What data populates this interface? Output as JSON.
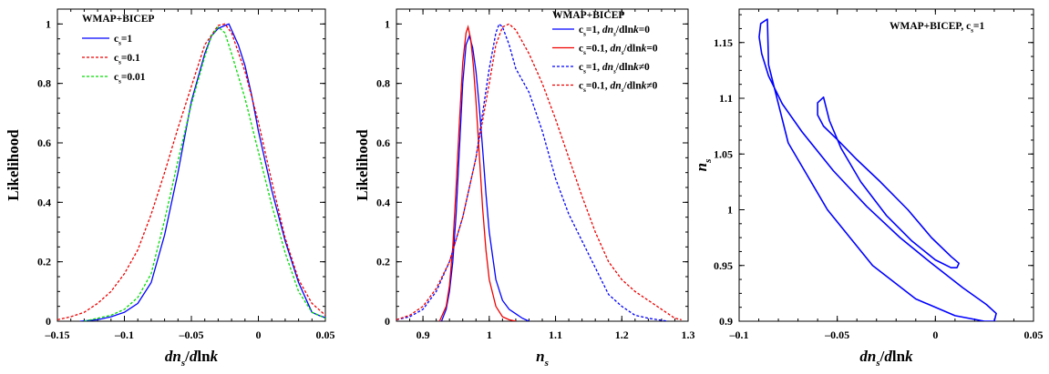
{
  "chart_data": [
    {
      "type": "line",
      "title": "WMAP+BICEP",
      "xlabel": "dn_s/dlnk",
      "xlabel_parts": [
        "dn",
        "s",
        "/",
        "d",
        "ln",
        "k"
      ],
      "ylabel": "Likelihood",
      "xlim": [
        -0.15,
        0.05
      ],
      "ylim": [
        0,
        1.05
      ],
      "xticks": [
        -0.15,
        -0.1,
        -0.05,
        0,
        0.05
      ],
      "xtick_labels": [
        "-0.15",
        "-0.1",
        "-0.05",
        "0",
        "0.05"
      ],
      "yticks": [
        0,
        0.2,
        0.4,
        0.6,
        0.8,
        1
      ],
      "ytick_labels": [
        "0",
        "0.2",
        "0.4",
        "0.6",
        "0.8",
        "1"
      ],
      "legend": "top-left",
      "series": [
        {
          "name": "c_s=1",
          "label_parts": [
            "c",
            "s",
            "=1"
          ],
          "color": "#0000ff",
          "dash": "solid",
          "x": [
            -0.133,
            -0.12,
            -0.11,
            -0.1,
            -0.09,
            -0.08,
            -0.07,
            -0.06,
            -0.05,
            -0.04,
            -0.035,
            -0.03,
            -0.025,
            -0.022,
            -0.02,
            -0.015,
            -0.01,
            -0.005,
            0,
            0.01,
            0.02,
            0.03,
            0.04,
            0.045,
            0.05
          ],
          "y": [
            0,
            0.005,
            0.015,
            0.03,
            0.06,
            0.13,
            0.29,
            0.5,
            0.74,
            0.9,
            0.96,
            0.985,
            0.995,
            1.0,
            0.98,
            0.93,
            0.86,
            0.76,
            0.64,
            0.44,
            0.27,
            0.13,
            0.03,
            0.02,
            0.012
          ]
        },
        {
          "name": "c_s=0.1",
          "label_parts": [
            "c",
            "s",
            "=0.1"
          ],
          "color": "#ee0000",
          "dash": "dash",
          "x": [
            -0.15,
            -0.14,
            -0.13,
            -0.12,
            -0.11,
            -0.1,
            -0.09,
            -0.08,
            -0.07,
            -0.06,
            -0.05,
            -0.04,
            -0.03,
            -0.025,
            -0.02,
            -0.01,
            0,
            0.01,
            0.02,
            0.03,
            0.04,
            0.05
          ],
          "y": [
            0.005,
            0.015,
            0.03,
            0.06,
            0.1,
            0.16,
            0.24,
            0.36,
            0.5,
            0.65,
            0.79,
            0.93,
            0.995,
            1.0,
            0.97,
            0.84,
            0.67,
            0.47,
            0.28,
            0.14,
            0.06,
            0.02
          ]
        },
        {
          "name": "c_s=0.01",
          "label_parts": [
            "c",
            "s",
            "=0.01"
          ],
          "color": "#00dd00",
          "dash": "dash",
          "x": [
            -0.13,
            -0.12,
            -0.11,
            -0.1,
            -0.09,
            -0.08,
            -0.07,
            -0.06,
            -0.05,
            -0.04,
            -0.035,
            -0.03,
            -0.025,
            -0.02,
            -0.01,
            0,
            0.01,
            0.02,
            0.03,
            0.04,
            0.05
          ],
          "y": [
            0,
            0.01,
            0.02,
            0.04,
            0.08,
            0.16,
            0.34,
            0.54,
            0.73,
            0.89,
            0.96,
            0.99,
            0.97,
            0.9,
            0.75,
            0.57,
            0.39,
            0.23,
            0.1,
            0.03,
            0.01
          ]
        }
      ]
    },
    {
      "type": "line",
      "title": "WMAP+BICEP",
      "xlabel": "n_s",
      "xlabel_parts": [
        "n",
        "s"
      ],
      "ylabel": "Likelihood",
      "xlim": [
        0.86,
        1.3
      ],
      "ylim": [
        0,
        1.05
      ],
      "xticks": [
        0.9,
        1.0,
        1.1,
        1.2,
        1.3
      ],
      "xtick_labels": [
        "0.9",
        "1",
        "1.1",
        "1.2",
        "1.3"
      ],
      "yticks": [
        0,
        0.2,
        0.4,
        0.6,
        0.8,
        1
      ],
      "ytick_labels": [
        "0",
        "0.2",
        "0.4",
        "0.6",
        "0.8",
        "1"
      ],
      "legend": "top-right",
      "series": [
        {
          "name": "c_s=1, dn_s/dlnk=0",
          "label_parts": [
            "c",
            "s",
            "=1, ",
            "dn",
            "s",
            "/d",
            "ln",
            "k",
            "=0"
          ],
          "color": "#0000ff",
          "dash": "solid",
          "x": [
            0.928,
            0.935,
            0.94,
            0.945,
            0.95,
            0.955,
            0.96,
            0.965,
            0.97,
            0.975,
            0.98,
            0.985,
            0.99,
            0.995,
            1.0,
            1.01,
            1.02,
            1.03,
            1.04,
            1.05,
            1.06
          ],
          "y": [
            0,
            0.04,
            0.1,
            0.2,
            0.36,
            0.58,
            0.8,
            0.93,
            0.96,
            0.92,
            0.84,
            0.72,
            0.58,
            0.43,
            0.3,
            0.14,
            0.07,
            0.04,
            0.025,
            0.01,
            0
          ]
        },
        {
          "name": "c_s=0.1, dn_s/dlnk=0",
          "label_parts": [
            "c",
            "s",
            "=0.1, ",
            "dn",
            "s",
            "/d",
            "ln",
            "k",
            "=0"
          ],
          "color": "#ee0000",
          "dash": "solid",
          "x": [
            0.925,
            0.935,
            0.94,
            0.945,
            0.95,
            0.955,
            0.96,
            0.965,
            0.968,
            0.972,
            0.976,
            0.98,
            0.985,
            0.99,
            0.995,
            1.0,
            1.01,
            1.02,
            1.03,
            1.04
          ],
          "y": [
            0,
            0.05,
            0.12,
            0.25,
            0.45,
            0.67,
            0.87,
            0.97,
            0.99,
            0.95,
            0.86,
            0.74,
            0.56,
            0.38,
            0.24,
            0.14,
            0.05,
            0.015,
            0.005,
            0
          ]
        },
        {
          "name": "c_s=1, dn_s/dlnk≠0",
          "label_parts": [
            "c",
            "s",
            "=1, ",
            "dn",
            "s",
            "/d",
            "ln",
            "k",
            "≠0"
          ],
          "color": "#0000ff",
          "dash": "dash",
          "x": [
            0.86,
            0.88,
            0.9,
            0.92,
            0.94,
            0.96,
            0.98,
            0.99,
            1.0,
            1.01,
            1.015,
            1.02,
            1.03,
            1.04,
            1.06,
            1.08,
            1.1,
            1.12,
            1.14,
            1.16,
            1.18,
            1.2,
            1.22,
            1.24,
            1.26,
            1.27
          ],
          "y": [
            0.005,
            0.015,
            0.04,
            0.1,
            0.2,
            0.35,
            0.55,
            0.7,
            0.85,
            0.97,
            1.0,
            0.99,
            0.93,
            0.85,
            0.77,
            0.64,
            0.48,
            0.36,
            0.27,
            0.18,
            0.09,
            0.05,
            0.02,
            0.01,
            0.003,
            0
          ]
        },
        {
          "name": "c_s=0.1, dn_s/dlnk≠0",
          "label_parts": [
            "c",
            "s",
            "=0.1, ",
            "dn",
            "s",
            "/d",
            "ln",
            "k",
            "≠0"
          ],
          "color": "#ee0000",
          "dash": "dash",
          "x": [
            0.86,
            0.88,
            0.9,
            0.92,
            0.94,
            0.96,
            0.98,
            1.0,
            1.01,
            1.02,
            1.03,
            1.04,
            1.06,
            1.08,
            1.1,
            1.12,
            1.14,
            1.16,
            1.18,
            1.2,
            1.22,
            1.24,
            1.26,
            1.28,
            1.29
          ],
          "y": [
            0.005,
            0.02,
            0.05,
            0.11,
            0.2,
            0.35,
            0.55,
            0.8,
            0.93,
            0.99,
            1.0,
            0.98,
            0.9,
            0.8,
            0.68,
            0.55,
            0.42,
            0.3,
            0.2,
            0.14,
            0.1,
            0.07,
            0.04,
            0.01,
            0.005
          ]
        }
      ]
    },
    {
      "type": "contour",
      "title": "WMAP+BICEP, c_s=1",
      "title_parts": [
        "WMAP+BICEP, c",
        "s",
        "=1"
      ],
      "xlabel": "dn_s/dlnk",
      "xlabel_parts": [
        "dn",
        "s",
        "/",
        "d",
        "ln",
        "k"
      ],
      "ylabel": "n_s",
      "ylabel_parts": [
        "n",
        "s"
      ],
      "xlim": [
        -0.1,
        0.05
      ],
      "ylim": [
        0.9,
        1.18
      ],
      "xticks": [
        -0.1,
        -0.05,
        0,
        0.05
      ],
      "xtick_labels": [
        "-0.1",
        "-0.05",
        "0",
        "0.05"
      ],
      "yticks": [
        0.9,
        0.95,
        1.0,
        1.05,
        1.1,
        1.15
      ],
      "ytick_labels": [
        "0.9",
        "0.95",
        "1",
        "1.05",
        "1.1",
        "1.15"
      ],
      "contours": [
        {
          "level": "95%",
          "color": "#0000ff",
          "x": [
            -0.0856,
            -0.089,
            -0.0898,
            -0.0885,
            -0.085,
            -0.078,
            -0.068,
            -0.052,
            -0.035,
            -0.018,
            -0.002,
            0.014,
            0.026,
            0.031,
            0.03,
            0.025,
            0.01,
            -0.01,
            -0.032,
            -0.055,
            -0.075,
            -0.085,
            -0.0856
          ],
          "y": [
            1.171,
            1.167,
            1.155,
            1.14,
            1.12,
            1.095,
            1.07,
            1.035,
            1.003,
            0.975,
            0.952,
            0.93,
            0.915,
            0.907,
            0.9,
            0.9,
            0.905,
            0.92,
            0.95,
            1.0,
            1.06,
            1.13,
            1.171
          ]
        },
        {
          "level": "68%",
          "color": "#0000ff",
          "x": [
            -0.057,
            -0.06,
            -0.06,
            -0.057,
            -0.05,
            -0.04,
            -0.028,
            -0.014,
            -0.002,
            0.008,
            0.012,
            0.011,
            0.008,
            0.0,
            -0.012,
            -0.025,
            -0.038,
            -0.048,
            -0.054,
            -0.057
          ],
          "y": [
            1.101,
            1.096,
            1.085,
            1.075,
            1.063,
            1.045,
            1.025,
            1.0,
            0.975,
            0.958,
            0.952,
            0.948,
            0.948,
            0.955,
            0.972,
            0.995,
            1.025,
            1.055,
            1.08,
            1.101
          ]
        }
      ]
    }
  ]
}
